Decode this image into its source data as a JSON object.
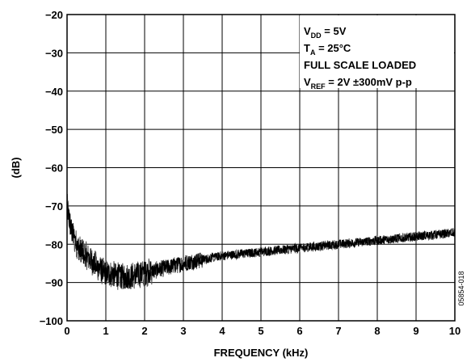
{
  "chart_data": {
    "type": "line",
    "title": "",
    "xlabel": "FREQUENCY (kHz)",
    "ylabel": "(dB)",
    "xlim": [
      0,
      10
    ],
    "ylim": [
      -100,
      -20
    ],
    "x_ticks": [
      0,
      1,
      2,
      3,
      4,
      5,
      6,
      7,
      8,
      9,
      10
    ],
    "y_ticks": [
      -20,
      -30,
      -40,
      -50,
      -60,
      -70,
      -80,
      -90,
      -100
    ],
    "grid": true,
    "legend": "none",
    "annotations": {
      "vdd": {
        "main": "V",
        "sub": "DD",
        "rest": " = 5V"
      },
      "ta": {
        "main": "T",
        "sub": "A",
        "rest": " = 25°C"
      },
      "load": "FULL SCALE LOADED",
      "vref": {
        "main": "V",
        "sub": "REF",
        "rest": " = 2V ±300mV p-p"
      }
    },
    "figure_code": "05854-018",
    "series": [
      {
        "color": "#000000",
        "noisy": true,
        "x": [
          0,
          0.1,
          0.2,
          0.3,
          0.4,
          0.5,
          0.6,
          0.7,
          0.8,
          0.9,
          1.0,
          1.2,
          1.4,
          1.6,
          1.8,
          2.0,
          2.2,
          2.4,
          2.6,
          2.8,
          3.0,
          3.5,
          4.0,
          4.5,
          5.0,
          5.5,
          6.0,
          6.5,
          7.0,
          7.5,
          8.0,
          8.5,
          9.0,
          9.5,
          10.0
        ],
        "y": [
          -70,
          -76,
          -79,
          -81,
          -82,
          -83,
          -84,
          -85,
          -86,
          -87,
          -87.5,
          -88,
          -88.5,
          -88.5,
          -88,
          -87.5,
          -87,
          -86.5,
          -86,
          -85.5,
          -85,
          -84,
          -83,
          -82.5,
          -82,
          -81.5,
          -81,
          -80.5,
          -80,
          -79.5,
          -79,
          -78.5,
          -78,
          -77.5,
          -77
        ]
      }
    ]
  }
}
